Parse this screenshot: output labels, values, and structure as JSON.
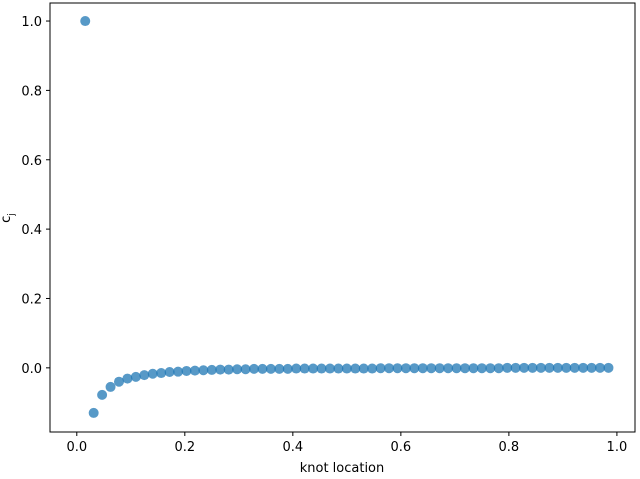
{
  "chart_data": {
    "type": "scatter",
    "xlabel": "knot location",
    "ylabel": "c",
    "ylabel_sub": "j",
    "xlim": [
      -0.0496,
      1.0335
    ],
    "ylim": [
      -0.185,
      1.052
    ],
    "xticks": [
      {
        "value": 0,
        "label": "0.0"
      },
      0.2,
      0.4,
      0.6,
      0.8,
      {
        "value": 1,
        "label": "1.0"
      }
    ],
    "yticks": [
      {
        "value": 0,
        "label": "0.0"
      },
      0.2,
      0.4,
      0.6,
      0.8,
      {
        "value": 1,
        "label": "1.0"
      }
    ],
    "grid": false,
    "series": [
      {
        "color": "#1f77b4",
        "alpha": 0.75,
        "x": [
          0.015625,
          0.03125,
          0.046875,
          0.0625,
          0.078125,
          0.09375,
          0.109375,
          0.125,
          0.140625,
          0.15625,
          0.171875,
          0.1875,
          0.203125,
          0.21875,
          0.234375,
          0.25,
          0.265625,
          0.28125,
          0.296875,
          0.3125,
          0.328125,
          0.34375,
          0.359375,
          0.375,
          0.390625,
          0.40625,
          0.421875,
          0.4375,
          0.453125,
          0.46875,
          0.484375,
          0.5,
          0.515625,
          0.53125,
          0.546875,
          0.5625,
          0.578125,
          0.59375,
          0.609375,
          0.625,
          0.640625,
          0.65625,
          0.671875,
          0.6875,
          0.703125,
          0.71875,
          0.734375,
          0.75,
          0.765625,
          0.78125,
          0.796875,
          0.8125,
          0.828125,
          0.84375,
          0.859375,
          0.875,
          0.890625,
          0.90625,
          0.921875,
          0.9375,
          0.953125,
          0.96875,
          0.984375
        ],
        "values": [
          1.0,
          -0.13,
          -0.078,
          -0.055,
          -0.04,
          -0.031,
          -0.026,
          -0.021,
          -0.017,
          -0.015,
          -0.012,
          -0.011,
          -0.009,
          -0.008,
          -0.007,
          -0.006,
          -0.005,
          -0.005,
          -0.004,
          -0.004,
          -0.003,
          -0.003,
          -0.003,
          -0.003,
          -0.003,
          -0.002,
          -0.002,
          -0.002,
          -0.002,
          -0.002,
          -0.002,
          -0.002,
          -0.002,
          -0.002,
          -0.002,
          -0.001,
          -0.001,
          -0.001,
          -0.001,
          -0.001,
          -0.001,
          -0.001,
          -0.001,
          -0.001,
          -0.001,
          -0.001,
          -0.001,
          -0.001,
          -0.001,
          -0.001,
          0,
          0,
          0,
          0,
          0,
          0,
          0,
          0,
          0,
          0,
          0,
          0,
          0
        ]
      }
    ]
  }
}
